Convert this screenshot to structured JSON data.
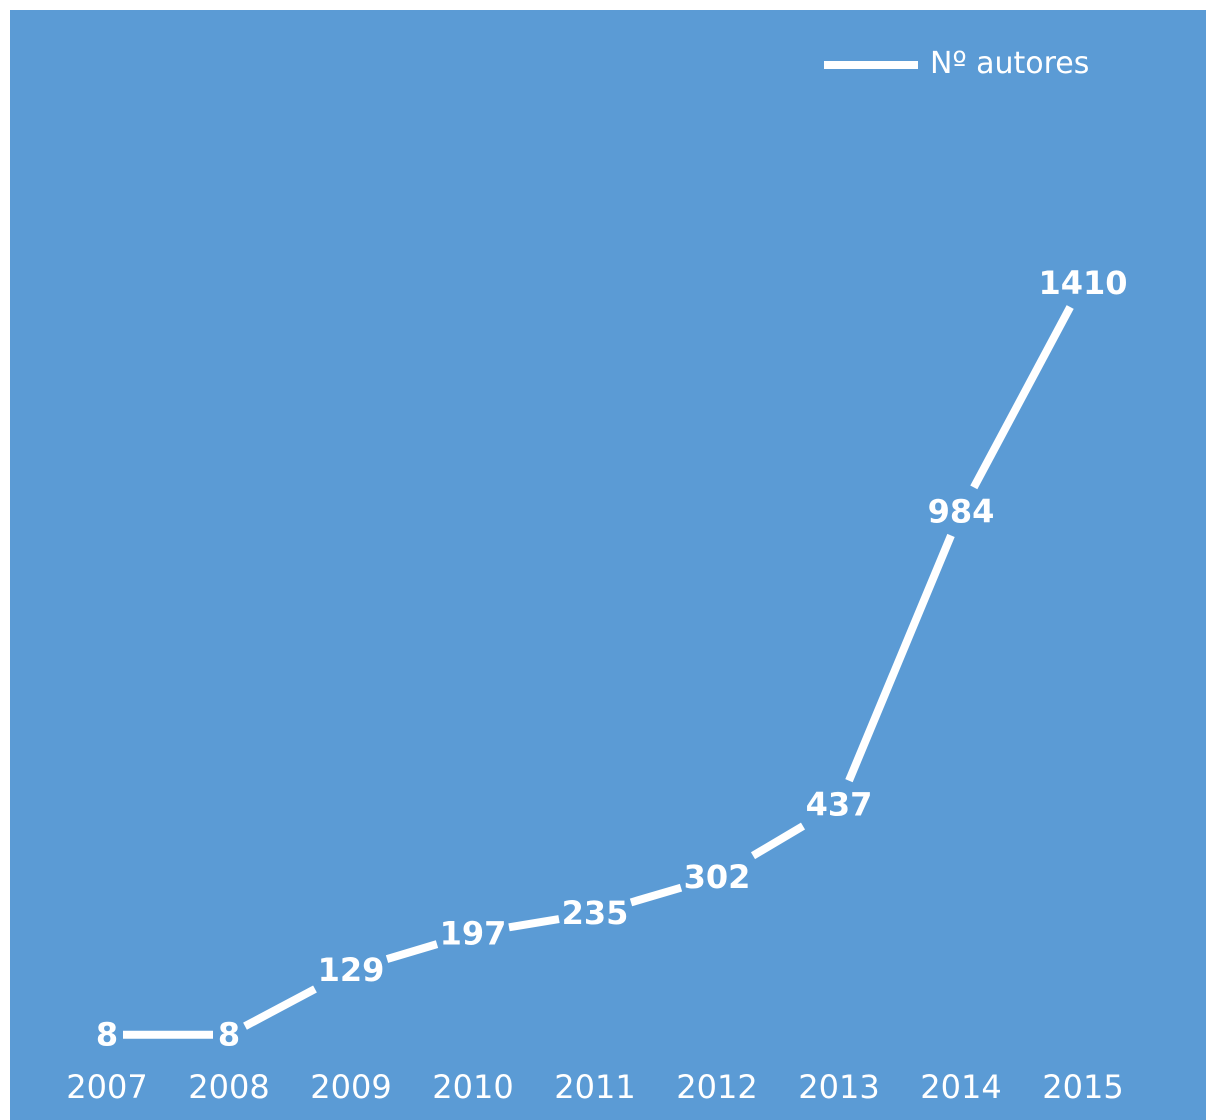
{
  "chart_data": {
    "type": "line",
    "categories": [
      "2007",
      "2008",
      "2009",
      "2010",
      "2011",
      "2012",
      "2013",
      "2014",
      "2015"
    ],
    "series": [
      {
        "name": "Nº autores",
        "values": [
          8,
          8,
          129,
          197,
          235,
          302,
          437,
          984,
          1410
        ],
        "color": "#ffffff"
      }
    ],
    "data_labels": [
      "8",
      "8",
      "129",
      "197",
      "235",
      "302",
      "437",
      "984",
      "1410"
    ],
    "legend_position": "top-right",
    "drop_lines": true,
    "grid": false,
    "background_color": "#5b9bd5"
  }
}
